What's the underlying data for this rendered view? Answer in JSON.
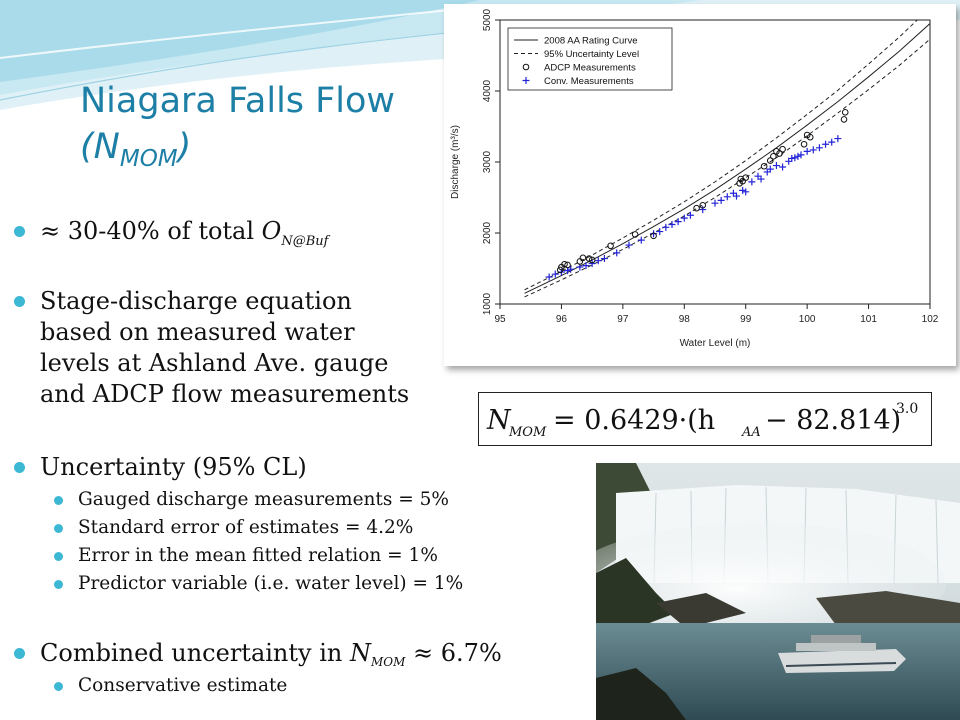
{
  "slide": {
    "title_main": "Niagara Falls Flow",
    "title_sym_open": "(N",
    "title_sym_sub": "MOM",
    "title_sym_close": ")"
  },
  "bullets": {
    "b1": {
      "approx": "≈ 30-40% of total ",
      "o": "O",
      "sub": "N@Buf"
    },
    "b2": [
      "Stage-discharge equation",
      "based on measured water",
      "levels at Ashland Ave. gauge",
      "and ADCP flow measurements"
    ],
    "b3": {
      "label": "Uncertainty (95% CL)",
      "items": [
        "Gauged discharge measurements = 5%",
        "Standard error of estimates = 4.2%",
        "Error in the mean fitted relation = 1%",
        "Predictor variable (i.e. water level) = 1%"
      ]
    },
    "b4": {
      "prefix": "Combined uncertainty in ",
      "n": "N",
      "sub": "MOM",
      "suffix": " ≈ 6.7%",
      "items": [
        "Conservative estimate"
      ]
    }
  },
  "equation": {
    "lhs_n": "N",
    "lhs_sub": "MOM",
    "rhs1": "= 0.6429·(h",
    "rhs_sub": "AA",
    "rhs2": "− 82.814)",
    "exponent": "3.0"
  },
  "photo": {
    "description_icon": "waterfall-photo"
  },
  "chart_data": {
    "type": "scatter",
    "xlabel": "Water Level (m)",
    "ylabel": "Discharge (m³/s)",
    "xlim": [
      95,
      102
    ],
    "ylim": [
      1000,
      5000
    ],
    "x_ticks": [
      95,
      96,
      97,
      98,
      99,
      100,
      101,
      102
    ],
    "y_ticks": [
      1000,
      2000,
      3000,
      4000,
      5000
    ],
    "grid": false,
    "legend_position": "top-left",
    "legend": [
      "2008 AA Rating Curve",
      "95% Uncertainty Level",
      "ADCP Measurements",
      "Conv. Measurements"
    ],
    "rating_curve": {
      "x": [
        95.4,
        96.0,
        96.5,
        97.0,
        97.5,
        98.0,
        98.5,
        99.0,
        99.5,
        100.0,
        100.5,
        101.0,
        101.5,
        102.0,
        102.3
      ],
      "y": [
        1150,
        1400,
        1620,
        1850,
        2090,
        2340,
        2610,
        2900,
        3200,
        3520,
        3850,
        4200,
        4560,
        4950,
        5180
      ]
    },
    "uncertainty_upper": {
      "x": [
        95.4,
        96.0,
        96.5,
        97.0,
        97.5,
        98.0,
        98.5,
        99.0,
        99.5,
        100.0,
        100.5,
        101.0,
        101.5,
        102.0,
        102.3
      ],
      "y": [
        1200,
        1460,
        1690,
        1930,
        2180,
        2440,
        2720,
        3020,
        3340,
        3670,
        4010,
        4380,
        4760,
        5170,
        5400
      ]
    },
    "uncertainty_lower": {
      "x": [
        95.4,
        96.0,
        96.5,
        97.0,
        97.5,
        98.0,
        98.5,
        99.0,
        99.5,
        100.0,
        100.5,
        101.0,
        101.5,
        102.0,
        102.3
      ],
      "y": [
        1100,
        1340,
        1550,
        1770,
        2000,
        2240,
        2500,
        2780,
        3060,
        3370,
        3690,
        4020,
        4360,
        4730,
        4950
      ]
    },
    "adcp": {
      "x": [
        95.98,
        96.0,
        96.05,
        96.1,
        96.3,
        96.35,
        96.45,
        96.5,
        96.8,
        97.2,
        97.5,
        98.2,
        98.3,
        98.9,
        98.92,
        98.95,
        99.0,
        99.3,
        99.4,
        99.45,
        99.5,
        99.55,
        99.6,
        99.95,
        100.0,
        100.05,
        100.6,
        100.62
      ],
      "y": [
        1480,
        1520,
        1560,
        1550,
        1600,
        1650,
        1640,
        1620,
        1820,
        1980,
        1960,
        2350,
        2390,
        2700,
        2760,
        2730,
        2780,
        2940,
        3020,
        3080,
        3150,
        3120,
        3180,
        3250,
        3380,
        3350,
        3600,
        3700
      ]
    },
    "conv": {
      "x": [
        95.8,
        95.9,
        96.0,
        96.1,
        96.15,
        96.3,
        96.4,
        96.5,
        96.6,
        96.7,
        96.9,
        97.1,
        97.3,
        97.5,
        97.6,
        97.7,
        97.8,
        97.9,
        98.0,
        98.1,
        98.3,
        98.5,
        98.6,
        98.7,
        98.8,
        98.85,
        98.95,
        99.0,
        99.1,
        99.2,
        99.25,
        99.35,
        99.4,
        99.5,
        99.6,
        99.7,
        99.75,
        99.8,
        99.85,
        99.9,
        100.0,
        100.1,
        100.2,
        100.3,
        100.4,
        100.5
      ],
      "y": [
        1380,
        1420,
        1450,
        1470,
        1490,
        1520,
        1540,
        1570,
        1610,
        1640,
        1720,
        1830,
        1900,
        1990,
        2020,
        2080,
        2120,
        2160,
        2210,
        2250,
        2330,
        2420,
        2460,
        2510,
        2560,
        2520,
        2600,
        2580,
        2720,
        2800,
        2760,
        2860,
        2900,
        2950,
        2930,
        3010,
        3050,
        3060,
        3080,
        3100,
        3150,
        3170,
        3200,
        3250,
        3280,
        3330
      ]
    }
  }
}
